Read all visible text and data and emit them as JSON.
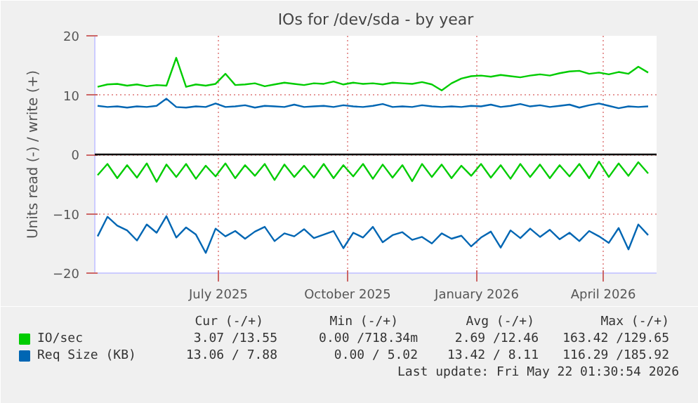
{
  "chart_data": {
    "type": "line",
    "title": "IOs for /dev/sda - by year",
    "ylabel": "Units read (-) / write (+)",
    "x": [
      "2025-04-06",
      "2025-04-13",
      "2025-04-20",
      "2025-04-27",
      "2025-05-04",
      "2025-05-11",
      "2025-05-18",
      "2025-05-25",
      "2025-06-01",
      "2025-06-08",
      "2025-06-15",
      "2025-06-22",
      "2025-06-29",
      "2025-07-06",
      "2025-07-13",
      "2025-07-20",
      "2025-07-27",
      "2025-08-03",
      "2025-08-10",
      "2025-08-17",
      "2025-08-24",
      "2025-08-31",
      "2025-09-07",
      "2025-09-14",
      "2025-09-21",
      "2025-09-28",
      "2025-10-05",
      "2025-10-12",
      "2025-10-19",
      "2025-10-26",
      "2025-11-02",
      "2025-11-09",
      "2025-11-16",
      "2025-11-23",
      "2025-11-30",
      "2025-12-07",
      "2025-12-14",
      "2025-12-21",
      "2025-12-28",
      "2026-01-04",
      "2026-01-11",
      "2026-01-18",
      "2026-01-25",
      "2026-02-01",
      "2026-02-08",
      "2026-02-15",
      "2026-02-22",
      "2026-03-01",
      "2026-03-08",
      "2026-03-15",
      "2026-03-22",
      "2026-03-29",
      "2026-04-05",
      "2026-04-12",
      "2026-04-19",
      "2026-04-26",
      "2026-05-03"
    ],
    "series": [
      {
        "name": "IO/sec",
        "color": "#00cc00",
        "values": [
          11.4,
          11.8,
          11.9,
          11.6,
          11.8,
          11.5,
          11.7,
          11.6,
          16.3,
          11.4,
          11.8,
          11.6,
          11.9,
          13.6,
          11.7,
          11.8,
          12.0,
          11.5,
          11.8,
          12.1,
          11.9,
          11.7,
          12.0,
          11.9,
          12.3,
          11.8,
          12.1,
          11.9,
          12.0,
          11.8,
          12.1,
          12.0,
          11.9,
          12.2,
          11.8,
          10.8,
          12.0,
          12.8,
          13.2,
          13.3,
          13.1,
          13.4,
          13.2,
          13.0,
          13.3,
          13.5,
          13.3,
          13.7,
          14.0,
          14.1,
          13.6,
          13.8,
          13.5,
          13.9,
          13.6,
          14.8,
          13.8
        ]
      },
      {
        "name": "Req Size (KB)",
        "color": "#0066b3",
        "values": [
          8.2,
          8.0,
          8.1,
          7.9,
          8.1,
          8.0,
          8.2,
          9.4,
          8.0,
          7.9,
          8.1,
          8.0,
          8.6,
          8.0,
          8.1,
          8.3,
          7.9,
          8.2,
          8.1,
          8.0,
          8.4,
          8.0,
          8.1,
          8.2,
          8.0,
          8.3,
          8.1,
          8.0,
          8.2,
          8.5,
          8.0,
          8.1,
          8.0,
          8.3,
          8.1,
          8.0,
          8.1,
          8.0,
          8.2,
          8.1,
          8.4,
          8.0,
          8.2,
          8.5,
          8.1,
          8.3,
          8.0,
          8.2,
          8.4,
          7.9,
          8.3,
          8.6,
          8.2,
          7.8,
          8.1,
          8.0,
          8.1
        ]
      },
      {
        "color": "#00cc00",
        "values": [
          -3.5,
          -1.6,
          -4.0,
          -1.8,
          -3.9,
          -1.5,
          -4.6,
          -1.7,
          -3.8,
          -1.6,
          -4.1,
          -1.9,
          -3.7,
          -1.5,
          -4.0,
          -1.8,
          -3.6,
          -1.6,
          -4.3,
          -1.7,
          -3.8,
          -1.9,
          -3.9,
          -1.6,
          -4.0,
          -1.8,
          -3.7,
          -1.6,
          -4.1,
          -1.7,
          -3.9,
          -1.8,
          -4.5,
          -1.6,
          -3.8,
          -1.7,
          -4.0,
          -1.9,
          -3.6,
          -1.6,
          -3.9,
          -1.8,
          -4.1,
          -1.6,
          -3.8,
          -1.7,
          -4.0,
          -1.8,
          -3.7,
          -1.6,
          -4.0,
          -1.2,
          -3.8,
          -1.5,
          -3.6,
          -1.3,
          -3.2
        ]
      },
      {
        "color": "#0066b3",
        "values": [
          -13.8,
          -10.5,
          -12.0,
          -12.8,
          -14.5,
          -11.8,
          -13.2,
          -10.4,
          -14.0,
          -12.3,
          -13.5,
          -16.6,
          -12.5,
          -13.8,
          -12.9,
          -14.2,
          -13.0,
          -12.2,
          -14.6,
          -13.3,
          -13.8,
          -12.6,
          -14.1,
          -13.5,
          -12.9,
          -15.8,
          -13.2,
          -14.0,
          -12.2,
          -14.8,
          -13.6,
          -13.1,
          -14.4,
          -13.9,
          -15.0,
          -13.3,
          -14.2,
          -13.7,
          -15.5,
          -14.0,
          -13.0,
          -15.7,
          -12.8,
          -14.1,
          -12.5,
          -13.9,
          -12.7,
          -14.3,
          -13.2,
          -14.6,
          -12.9,
          -13.8,
          -14.9,
          -12.4,
          -16.0,
          -11.8,
          -13.6
        ]
      }
    ],
    "xlim": [
      "2025-04-04",
      "2026-05-09"
    ],
    "xticks": [
      {
        "value": "2025-07-01",
        "label": "July 2025"
      },
      {
        "value": "2025-10-01",
        "label": "October 2025"
      },
      {
        "value": "2026-01-01",
        "label": "January 2026"
      },
      {
        "value": "2026-04-01",
        "label": "April 2026"
      }
    ],
    "ylim": [
      -20,
      20
    ],
    "yticks": [
      -20,
      -10,
      0,
      10,
      20
    ],
    "ref_lines": [
      {
        "axis": "y",
        "value": 0,
        "color": "#000000"
      }
    ],
    "grid": true,
    "legend": "bottom left",
    "line_style": "solid",
    "marker": "none",
    "annotations": [
      "Cur (-/+)",
      "Min (-/+)",
      "Avg (-/+)",
      "Max (-/+)",
      "3.07 /13.55",
      "0.00 /718.34m",
      "2.69 /12.46",
      "163.42 /129.65",
      "13.06 / 7.88",
      "0.00 / 5.02",
      "13.42 / 8.11",
      "116.29 /185.92",
      "Last update: Fri May 22 01:30:54 2026"
    ]
  }
}
